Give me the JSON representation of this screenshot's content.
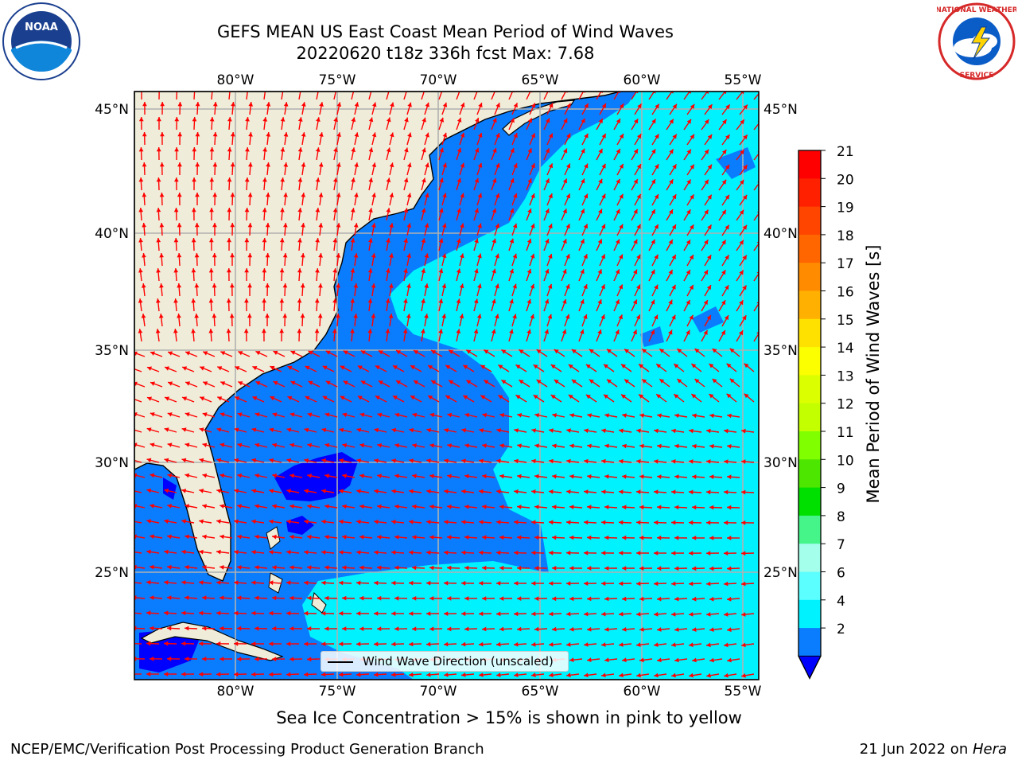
{
  "header": {
    "title_line1": "GEFS MEAN US East Coast Mean Period of Wind Waves",
    "title_line2": "20220620 t18z 336h fcst   Max: 7.68"
  },
  "logos": {
    "left": {
      "name": "noaa-logo",
      "text": "NOAA"
    },
    "right": {
      "name": "nws-logo",
      "text": "NATIONAL WEATHER SERVICE"
    }
  },
  "map": {
    "lon_labels": [
      "80°W",
      "75°W",
      "70°W",
      "65°W",
      "60°W",
      "55°W"
    ],
    "lat_labels": [
      "45°N",
      "40°N",
      "35°N",
      "30°N",
      "25°N"
    ],
    "lon_range": [
      -85,
      -54.3
    ],
    "lat_range": [
      20.5,
      46
    ],
    "colors": {
      "land": "#efedd9",
      "ocean_shallow": "#0a7dff",
      "ocean_open": "#00f2ff",
      "ocean_deep": "#0000ff",
      "arrow": "#ff0000",
      "grid": "#b0b0b0",
      "coast": "#000000"
    },
    "legend_label": "Wind Wave Direction (unscaled)"
  },
  "colorbar": {
    "label": "Mean Period of Wind Waves [s]",
    "ticks": [
      "21",
      "20",
      "19",
      "18",
      "17",
      "16",
      "15",
      "14",
      "13",
      "12",
      "11",
      "10",
      "9",
      "8",
      "7",
      "6",
      "4",
      "2"
    ],
    "colors": [
      "#ff0000",
      "#ff2000",
      "#ff4500",
      "#ff6600",
      "#ff8c00",
      "#ffb000",
      "#ffe100",
      "#fcff00",
      "#dcff00",
      "#c4ff00",
      "#7fff00",
      "#4ce600",
      "#00e000",
      "#45f58a",
      "#a4ffeb",
      "#5cffff",
      "#00f2ff",
      "#0a7dff"
    ],
    "extend_color": "#0000ff"
  },
  "footer": {
    "ice_note": "Sea Ice Concentration > 15% is shown in pink to yellow",
    "left": "NCEP/EMC/Verification Post Processing Product Generation Branch",
    "right_date": "21 Jun 2022 on ",
    "right_host": "Hera"
  }
}
